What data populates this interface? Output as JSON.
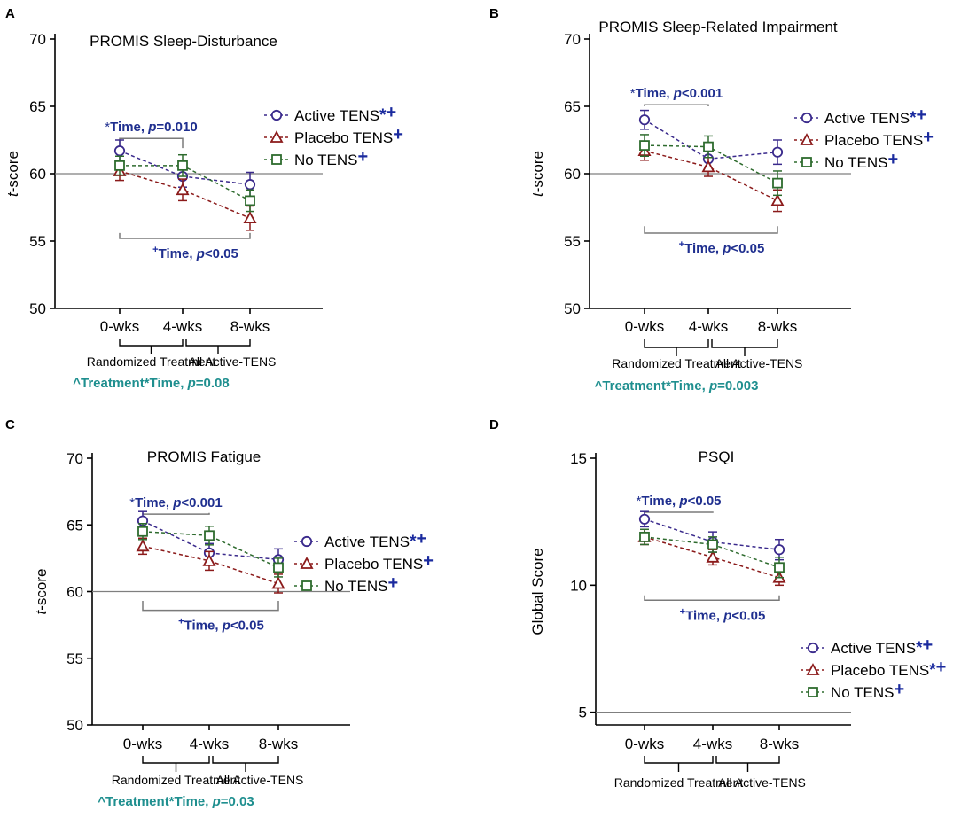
{
  "colors": {
    "active": "#3a2a8c",
    "placebo": "#8b1a1a",
    "none": "#2e6b2e",
    "annotation": "#1f2f8f",
    "interaction": "#1f8f8f",
    "plus": "#1a2a9e",
    "ref": "#7f7f7f"
  },
  "chart_data": [
    {
      "panel_letter": "A",
      "type": "line",
      "title": "PROMIS Sleep-Disturbance",
      "ylabel": "t-score",
      "ylabel_italic_part": "t",
      "ylabel_rest": "-score",
      "ylim": [
        50,
        70
      ],
      "yticks": [
        50,
        55,
        60,
        65,
        70
      ],
      "reference_line": 60,
      "categories": [
        "0-wks",
        "4-wks",
        "8-wks"
      ],
      "series": [
        {
          "key": "active",
          "name": "Active TENS",
          "marker": "circle",
          "values": [
            61.7,
            59.8,
            59.2
          ],
          "errors": [
            0.8,
            0.8,
            0.9
          ],
          "suffix_star": "*",
          "suffix_plus": "+"
        },
        {
          "key": "placebo",
          "name": "Placebo TENS",
          "marker": "triangle",
          "values": [
            60.2,
            58.8,
            56.7
          ],
          "errors": [
            0.7,
            0.8,
            0.9
          ],
          "suffix_star": "",
          "suffix_plus": "+"
        },
        {
          "key": "none",
          "name": "No TENS",
          "marker": "square",
          "values": [
            60.6,
            60.6,
            58.0
          ],
          "errors": [
            0.7,
            0.8,
            0.8
          ],
          "suffix_star": "",
          "suffix_plus": "+"
        }
      ],
      "top_annotation": {
        "prefix": "*",
        "label": "Time, ",
        "p": "p",
        "value": "=0.010",
        "value_axis": 63.8,
        "from": 0,
        "to": 1,
        "drop": 61.9
      },
      "bottom_annotation": {
        "prefix": "+",
        "label": "Time, ",
        "p": "p",
        "value": "<0.05",
        "value_axis": 54.8,
        "from": 0,
        "to": 2,
        "rise": 55.6
      },
      "bottom_labels": {
        "left": "Randomized Treatment",
        "right": "All Active-TENS"
      },
      "interaction": {
        "text": "^Treatment*Time, ",
        "p": "p",
        "value": "=0.08"
      }
    },
    {
      "panel_letter": "B",
      "type": "line",
      "title": "PROMIS Sleep-Related Impairment",
      "ylabel": "t-score",
      "ylabel_italic_part": "t",
      "ylabel_rest": "-score",
      "ylim": [
        50,
        70
      ],
      "yticks": [
        50,
        55,
        60,
        65,
        70
      ],
      "reference_line": 60,
      "categories": [
        "0-wks",
        "4-wks",
        "8-wks"
      ],
      "series": [
        {
          "key": "active",
          "name": "Active TENS",
          "marker": "circle",
          "values": [
            64.0,
            61.1,
            61.6
          ],
          "errors": [
            0.7,
            0.8,
            0.9
          ],
          "suffix_star": "*",
          "suffix_plus": "+"
        },
        {
          "key": "placebo",
          "name": "Placebo TENS",
          "marker": "triangle",
          "values": [
            61.7,
            60.5,
            58.0
          ],
          "errors": [
            0.7,
            0.7,
            0.8
          ],
          "suffix_star": "",
          "suffix_plus": "+"
        },
        {
          "key": "none",
          "name": "No TENS",
          "marker": "square",
          "values": [
            62.1,
            62.0,
            59.3
          ],
          "errors": [
            0.8,
            0.8,
            0.9
          ],
          "suffix_star": "",
          "suffix_plus": "+"
        }
      ],
      "top_annotation": {
        "prefix": "*",
        "label": "Time, ",
        "p": "p",
        "value": "<0.001",
        "value_axis": 66.3,
        "from": 0,
        "to": 1,
        "drop": 65.0
      },
      "bottom_annotation": {
        "prefix": "+",
        "label": "Time, ",
        "p": "p",
        "value": "<0.05",
        "value_axis": 55.2,
        "from": 0,
        "to": 2,
        "rise": 56.1
      },
      "bottom_labels": {
        "left": "Randomized Treatment",
        "right": "All   Active-TENS"
      },
      "interaction": {
        "text": "^Treatment*Time, ",
        "p": "p",
        "value": "=0.003"
      }
    },
    {
      "panel_letter": "C",
      "type": "line",
      "title": "PROMIS Fatigue",
      "ylabel": "t-score",
      "ylabel_italic_part": "t",
      "ylabel_rest": "-score",
      "ylim": [
        50,
        70
      ],
      "yticks": [
        50,
        55,
        60,
        65,
        70
      ],
      "reference_line": 60,
      "categories": [
        "0-wks",
        "4-wks",
        "8-wks"
      ],
      "series": [
        {
          "key": "active",
          "name": "Active TENS",
          "marker": "circle",
          "values": [
            65.3,
            62.9,
            62.4
          ],
          "errors": [
            0.7,
            0.7,
            0.8
          ],
          "suffix_star": "*",
          "suffix_plus": "+"
        },
        {
          "key": "placebo",
          "name": "Placebo TENS",
          "marker": "triangle",
          "values": [
            63.4,
            62.3,
            60.6
          ],
          "errors": [
            0.6,
            0.7,
            0.7
          ],
          "suffix_star": "",
          "suffix_plus": "+"
        },
        {
          "key": "none",
          "name": "No TENS",
          "marker": "square",
          "values": [
            64.5,
            64.2,
            61.8
          ],
          "errors": [
            0.6,
            0.7,
            0.7
          ],
          "suffix_star": "",
          "suffix_plus": "+"
        }
      ],
      "top_annotation": {
        "prefix": "*",
        "label": "Time, ",
        "p": "p",
        "value": "<0.001",
        "value_axis": 67.0,
        "from": 0,
        "to": 1,
        "drop": 65.9
      },
      "bottom_annotation": {
        "prefix": "+",
        "label": "Time, ",
        "p": "p",
        "value": "<0.05",
        "value_axis": 58.2,
        "from": 0,
        "to": 2,
        "rise": 59.3
      },
      "bottom_labels": {
        "left": "Randomized Treatment",
        "right": "All Active-TENS"
      },
      "interaction": {
        "text": "^Treatment*Time, ",
        "p": "p",
        "value": "=0.03"
      }
    },
    {
      "panel_letter": "D",
      "type": "line",
      "title": "PSQI",
      "ylabel": "Global Score",
      "ylabel_italic_part": "",
      "ylabel_rest": "Global Score",
      "ylim": [
        4.5,
        15
      ],
      "yticks": [
        5,
        10,
        15
      ],
      "reference_line": 5,
      "categories": [
        "0-wks",
        "4-wks",
        "8-wks"
      ],
      "series": [
        {
          "key": "active",
          "name": "Active TENS",
          "marker": "circle",
          "values": [
            12.6,
            11.7,
            11.4
          ],
          "errors": [
            0.3,
            0.4,
            0.4
          ],
          "suffix_star": "*",
          "suffix_plus": "+"
        },
        {
          "key": "placebo",
          "name": "Placebo TENS",
          "marker": "triangle",
          "values": [
            11.9,
            11.1,
            10.3
          ],
          "errors": [
            0.3,
            0.3,
            0.3
          ],
          "suffix_star": "*",
          "suffix_plus": "+"
        },
        {
          "key": "none",
          "name": "No TENS",
          "marker": "square",
          "values": [
            11.9,
            11.6,
            10.7
          ],
          "errors": [
            0.3,
            0.3,
            0.4
          ],
          "suffix_star": "",
          "suffix_plus": "+"
        }
      ],
      "top_annotation": {
        "prefix": "*",
        "label": "Time, ",
        "p": "p",
        "value": "<0.05",
        "value_axis": 13.5,
        "from": 0,
        "to": 1,
        "drop": 12.9
      },
      "bottom_annotation": {
        "prefix": "+",
        "label": "Time, ",
        "p": "p",
        "value": "<0.05",
        "value_axis": 9.2,
        "from": 0,
        "to": 2,
        "rise": 9.6
      },
      "bottom_labels": {
        "left": "Randomized Treatment",
        "right": "All Active-TENS"
      },
      "interaction": null
    }
  ]
}
